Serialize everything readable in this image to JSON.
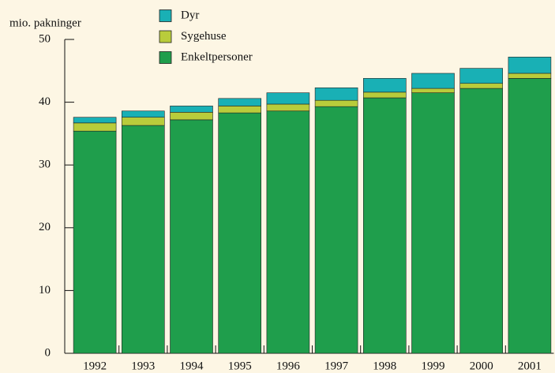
{
  "chart_data": {
    "type": "stacked_bar",
    "y_label": "mio. pakninger",
    "categories": [
      "1992",
      "1993",
      "1994",
      "1995",
      "1996",
      "1997",
      "1998",
      "1999",
      "2000",
      "2001"
    ],
    "series": [
      {
        "name": "Enkeltpersoner",
        "color": "#1f9e4c",
        "values": [
          35.4,
          36.3,
          37.2,
          38.3,
          38.6,
          39.3,
          40.7,
          41.5,
          42.2,
          43.8
        ]
      },
      {
        "name": "Sygehuse",
        "color": "#b9cc3b",
        "values": [
          1.3,
          1.3,
          1.2,
          1.1,
          1.1,
          1.0,
          0.9,
          0.7,
          0.8,
          0.8
        ]
      },
      {
        "name": "Dyr",
        "color": "#19b0b5",
        "values": [
          0.9,
          1.0,
          1.0,
          1.2,
          1.8,
          2.0,
          2.2,
          2.4,
          2.4,
          2.6
        ]
      }
    ],
    "ylim": [
      0,
      50
    ],
    "yticks": [
      0,
      10,
      20,
      30,
      40,
      50
    ],
    "legend": "top"
  }
}
